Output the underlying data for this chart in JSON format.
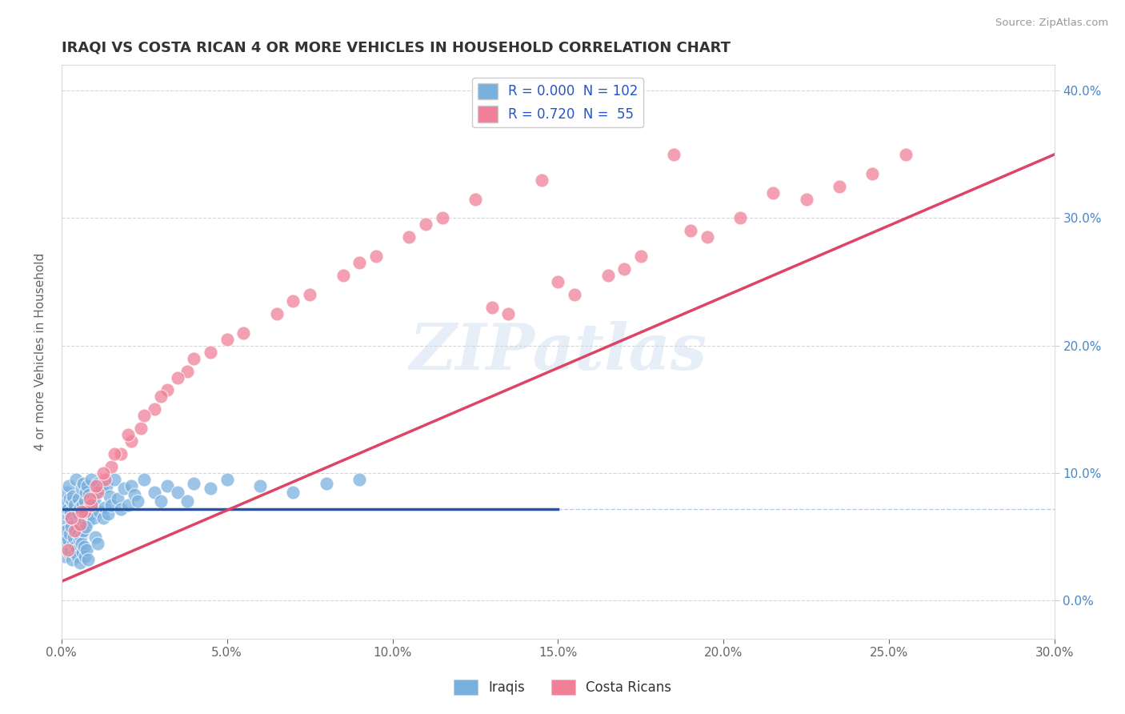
{
  "title": "IRAQI VS COSTA RICAN 4 OR MORE VEHICLES IN HOUSEHOLD CORRELATION CHART",
  "source_text": "Source: ZipAtlas.com",
  "ylabel": "4 or more Vehicles in Household",
  "right_ytick_vals": [
    0.0,
    10.0,
    20.0,
    30.0,
    40.0
  ],
  "xlim": [
    0.0,
    30.0
  ],
  "ylim": [
    -3.0,
    42.0
  ],
  "legend": [
    {
      "label": "R = 0.000  N = 102",
      "color": "#aec6e8"
    },
    {
      "label": "R = 0.720  N =  55",
      "color": "#f4b8c8"
    }
  ],
  "watermark": "ZIPatlas",
  "iraqis_color": "#7ab0de",
  "costa_ricans_color": "#f08098",
  "iraqis_line_color": "#2255aa",
  "costa_ricans_line_color": "#dd4466",
  "background_color": "#ffffff",
  "grid_color": "#cccccc",
  "iraqi_line_solid_end": 15.0,
  "iraqi_line_y": 7.2,
  "cr_line_x0": 0.0,
  "cr_line_y0": 1.5,
  "cr_line_x1": 30.0,
  "cr_line_y1": 35.0,
  "iraqis_x": [
    0.05,
    0.08,
    0.1,
    0.12,
    0.15,
    0.18,
    0.2,
    0.22,
    0.25,
    0.28,
    0.3,
    0.32,
    0.35,
    0.38,
    0.4,
    0.42,
    0.45,
    0.48,
    0.5,
    0.52,
    0.55,
    0.58,
    0.6,
    0.62,
    0.65,
    0.68,
    0.7,
    0.72,
    0.75,
    0.78,
    0.8,
    0.82,
    0.85,
    0.88,
    0.9,
    0.92,
    0.95,
    0.98,
    1.0,
    1.05,
    1.1,
    1.15,
    1.2,
    1.25,
    1.3,
    1.35,
    1.4,
    1.45,
    1.5,
    1.6,
    1.7,
    1.8,
    1.9,
    2.0,
    2.1,
    2.2,
    2.3,
    2.5,
    2.8,
    3.0,
    3.2,
    3.5,
    3.8,
    4.0,
    4.5,
    5.0,
    6.0,
    7.0,
    8.0,
    9.0,
    0.06,
    0.09,
    0.11,
    0.14,
    0.16,
    0.19,
    0.21,
    0.24,
    0.26,
    0.29,
    0.31,
    0.34,
    0.36,
    0.39,
    0.41,
    0.44,
    0.46,
    0.49,
    0.51,
    0.54,
    0.56,
    0.59,
    0.61,
    0.64,
    0.66,
    0.69,
    0.71,
    0.74,
    0.76,
    0.79,
    1.02,
    1.08
  ],
  "iraqis_y": [
    7.5,
    6.0,
    7.8,
    5.5,
    8.5,
    6.8,
    7.2,
    9.0,
    8.0,
    7.0,
    6.5,
    7.8,
    8.2,
    6.2,
    7.5,
    5.8,
    9.5,
    7.0,
    6.8,
    8.0,
    7.3,
    6.0,
    8.8,
    7.5,
    9.2,
    6.5,
    7.8,
    8.5,
    7.0,
    9.0,
    6.2,
    8.3,
    7.5,
    6.8,
    9.5,
    7.2,
    8.0,
    6.5,
    7.8,
    8.5,
    9.2,
    7.0,
    8.8,
    6.5,
    7.3,
    9.0,
    6.8,
    8.2,
    7.5,
    9.5,
    8.0,
    7.2,
    8.8,
    7.5,
    9.0,
    8.3,
    7.8,
    9.5,
    8.5,
    7.8,
    9.0,
    8.5,
    7.8,
    9.2,
    8.8,
    9.5,
    9.0,
    8.5,
    9.2,
    9.5,
    4.5,
    3.5,
    5.0,
    4.2,
    5.5,
    4.8,
    3.8,
    5.2,
    4.0,
    5.8,
    3.2,
    4.5,
    5.0,
    3.8,
    4.2,
    5.5,
    4.0,
    3.5,
    5.2,
    4.8,
    3.0,
    5.0,
    4.5,
    3.8,
    5.5,
    4.2,
    3.5,
    5.8,
    4.0,
    3.2,
    5.0,
    4.5
  ],
  "costa_ricans_x": [
    0.2,
    0.4,
    0.55,
    0.7,
    0.9,
    1.1,
    1.3,
    1.5,
    1.8,
    2.1,
    2.4,
    2.8,
    3.2,
    3.8,
    4.5,
    5.5,
    6.5,
    7.5,
    8.5,
    9.5,
    10.5,
    11.5,
    12.5,
    13.5,
    14.5,
    15.5,
    16.5,
    17.5,
    18.5,
    19.5,
    20.5,
    21.5,
    22.5,
    0.3,
    0.6,
    0.85,
    1.05,
    1.25,
    1.6,
    2.0,
    2.5,
    3.0,
    3.5,
    4.0,
    5.0,
    7.0,
    9.0,
    11.0,
    13.0,
    15.0,
    17.0,
    19.0,
    23.5,
    24.5,
    25.5
  ],
  "costa_ricans_y": [
    4.0,
    5.5,
    6.0,
    7.0,
    7.5,
    8.5,
    9.5,
    10.5,
    11.5,
    12.5,
    13.5,
    15.0,
    16.5,
    18.0,
    19.5,
    21.0,
    22.5,
    24.0,
    25.5,
    27.0,
    28.5,
    30.0,
    31.5,
    22.5,
    33.0,
    24.0,
    25.5,
    27.0,
    35.0,
    28.5,
    30.0,
    32.0,
    31.5,
    6.5,
    7.0,
    8.0,
    9.0,
    10.0,
    11.5,
    13.0,
    14.5,
    16.0,
    17.5,
    19.0,
    20.5,
    23.5,
    26.5,
    29.5,
    23.0,
    25.0,
    26.0,
    29.0,
    32.5,
    33.5,
    35.0
  ]
}
